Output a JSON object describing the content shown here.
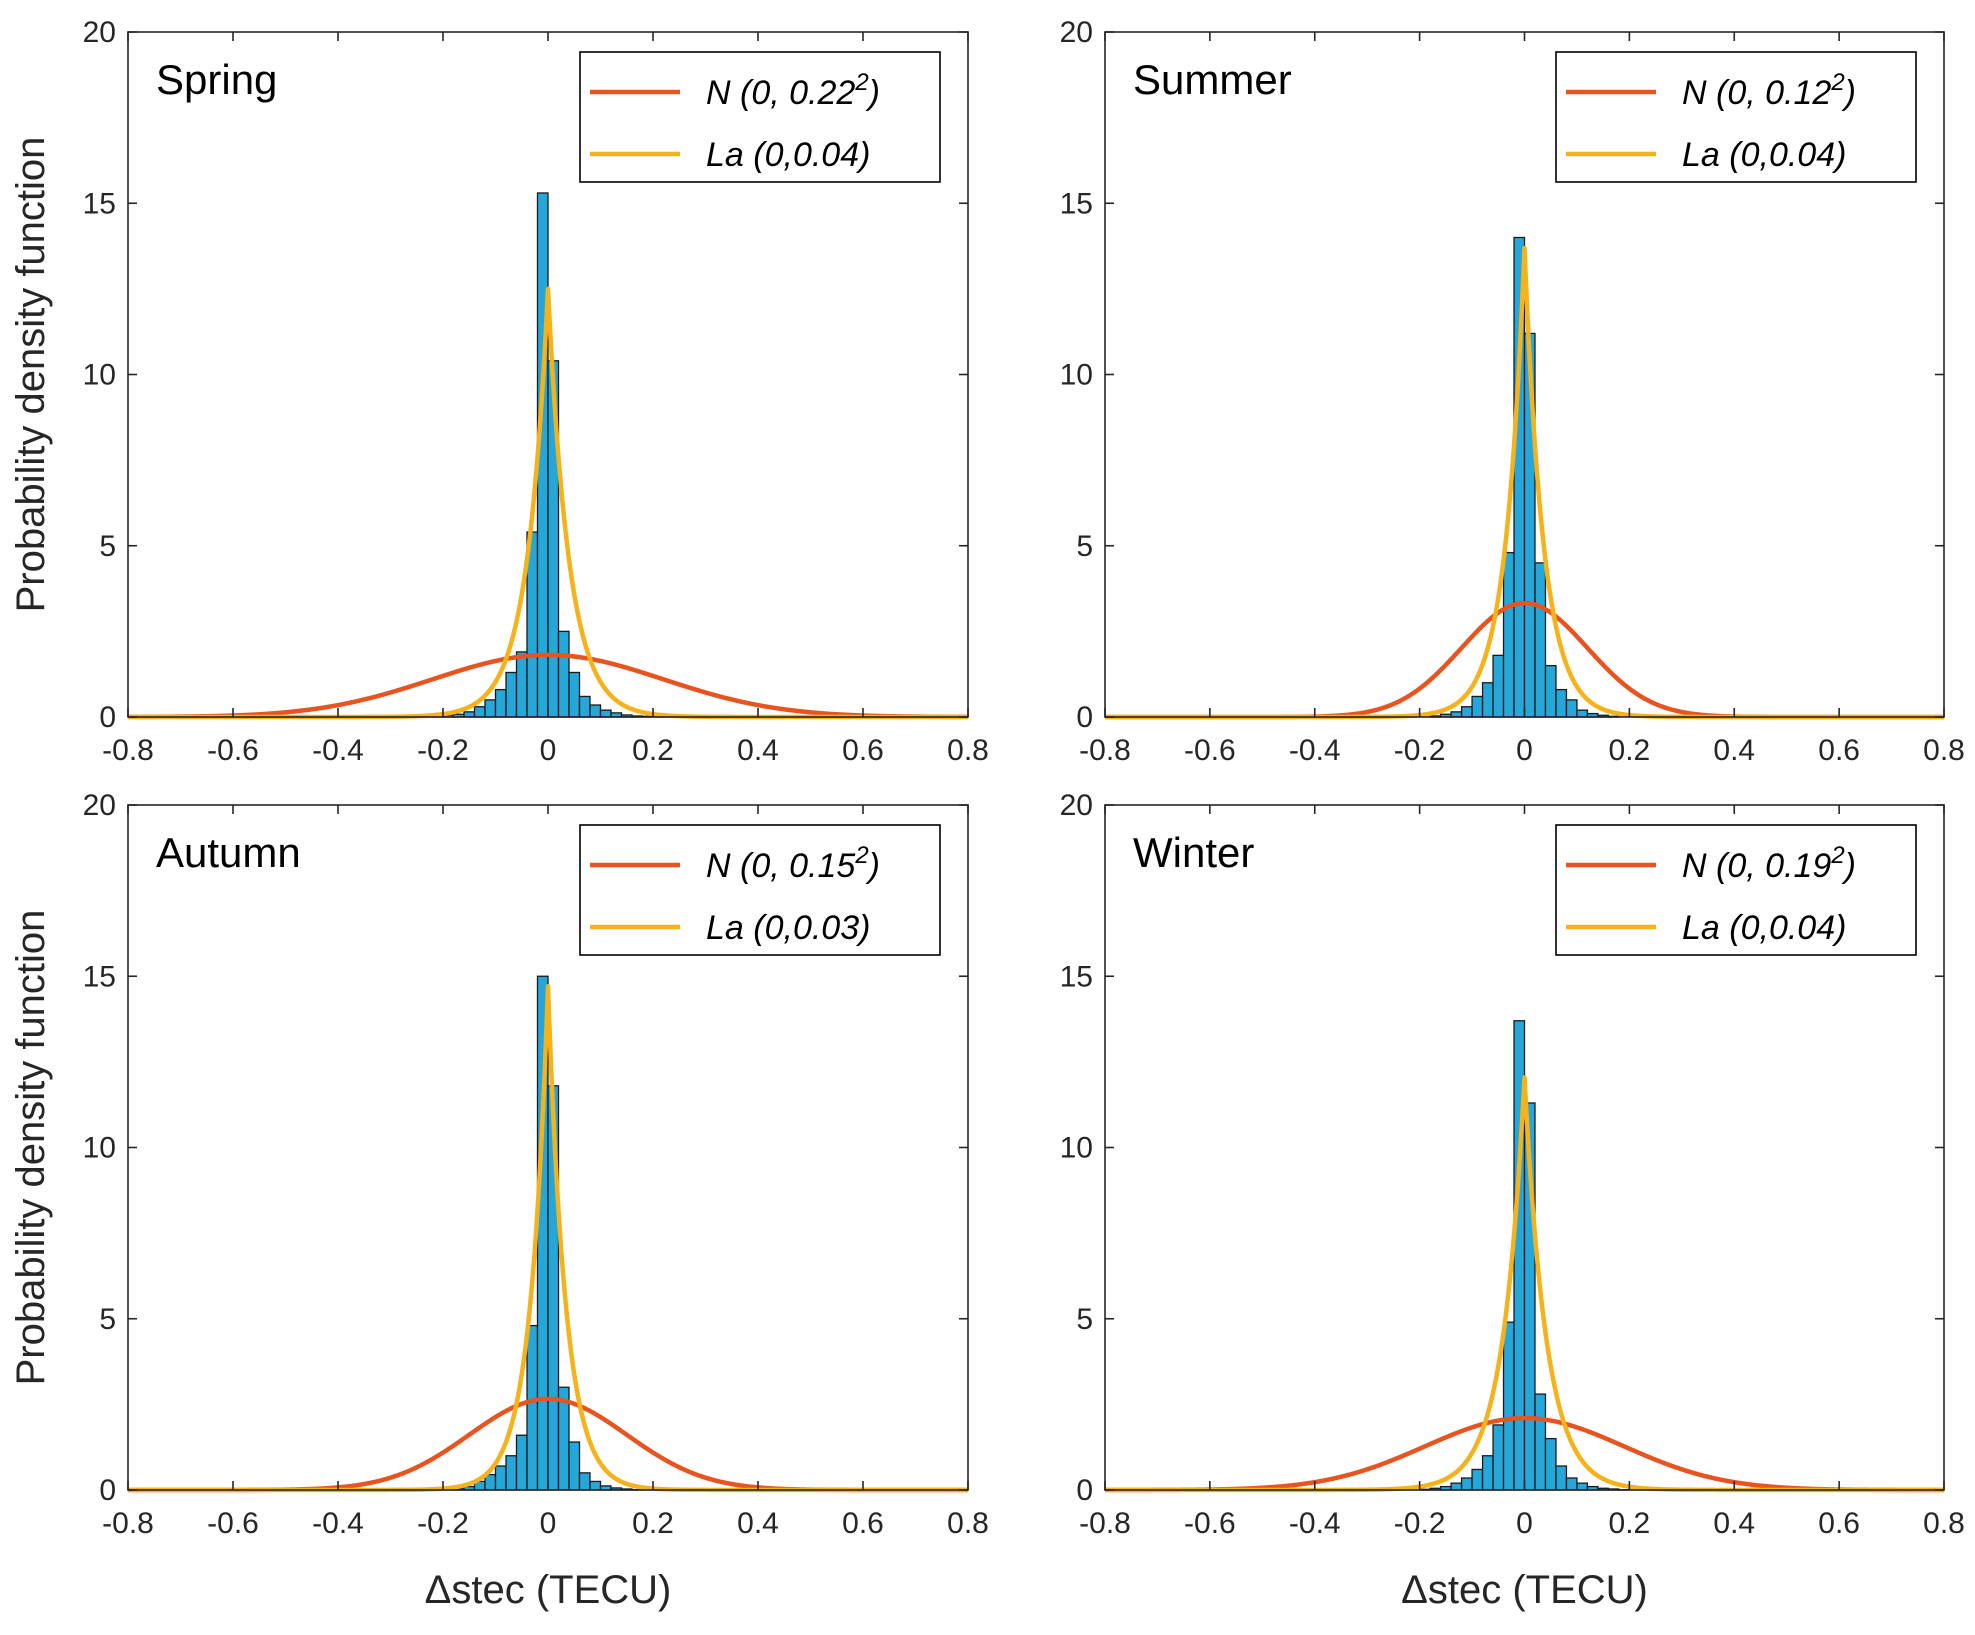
{
  "chart_data": [
    {
      "type": "histogram",
      "title": "Spring",
      "xlabel": "Δstec (TECU)",
      "ylabel": "Probability density function",
      "xlim": [
        -0.8,
        0.8
      ],
      "ylim": [
        0,
        20
      ],
      "xticks": [
        "-0.8",
        "-0.6",
        "-0.4",
        "-0.2",
        "0",
        "0.2",
        "0.4",
        "0.6",
        "0.8"
      ],
      "yticks": [
        "0",
        "5",
        "10",
        "15",
        "20"
      ],
      "bin_width": 0.02,
      "bins_center": [
        -0.21,
        -0.19,
        -0.17,
        -0.15,
        -0.13,
        -0.11,
        -0.09,
        -0.07,
        -0.05,
        -0.03,
        -0.01,
        0.01,
        0.03,
        0.05,
        0.07,
        0.09,
        0.11,
        0.13,
        0.15,
        0.17,
        0.19,
        0.21
      ],
      "bins_value": [
        0.03,
        0.05,
        0.08,
        0.15,
        0.3,
        0.5,
        0.8,
        1.3,
        1.9,
        5.4,
        15.3,
        10.4,
        2.5,
        1.3,
        0.6,
        0.35,
        0.2,
        0.12,
        0.06,
        0.03,
        0.02,
        0.01
      ],
      "series": [
        {
          "name": "normal",
          "label_main": "N (0, 0.22",
          "label_sup": "2",
          "label_tail": ")",
          "mu": 0,
          "sigma": 0.22,
          "color": "#E8541F"
        },
        {
          "name": "laplace",
          "label_main": "La (0,0.04)",
          "label_sup": "",
          "label_tail": "",
          "mu": 0,
          "b": 0.04,
          "color": "#F5B21A"
        }
      ]
    },
    {
      "type": "histogram",
      "title": "Summer",
      "xlabel": "Δstec (TECU)",
      "ylabel": "",
      "xlim": [
        -0.8,
        0.8
      ],
      "ylim": [
        0,
        20
      ],
      "xticks": [
        "-0.8",
        "-0.6",
        "-0.4",
        "-0.2",
        "0",
        "0.2",
        "0.4",
        "0.6",
        "0.8"
      ],
      "yticks": [
        "0",
        "5",
        "10",
        "15",
        "20"
      ],
      "bin_width": 0.02,
      "bins_center": [
        -0.17,
        -0.15,
        -0.13,
        -0.11,
        -0.09,
        -0.07,
        -0.05,
        -0.03,
        -0.01,
        0.01,
        0.03,
        0.05,
        0.07,
        0.09,
        0.11,
        0.13,
        0.15,
        0.17
      ],
      "bins_value": [
        0.03,
        0.08,
        0.15,
        0.3,
        0.6,
        1.0,
        1.8,
        4.8,
        14.0,
        11.2,
        4.5,
        1.5,
        0.8,
        0.5,
        0.2,
        0.1,
        0.05,
        0.02
      ],
      "series": [
        {
          "name": "normal",
          "label_main": "N (0, 0.12",
          "label_sup": "2",
          "label_tail": ")",
          "mu": 0,
          "sigma": 0.12,
          "color": "#E8541F"
        },
        {
          "name": "laplace",
          "label_main": "La (0,0.04)",
          "label_sup": "",
          "label_tail": "",
          "mu": 0,
          "b": 0.0365,
          "color": "#F5B21A"
        }
      ]
    },
    {
      "type": "histogram",
      "title": "Autumn",
      "xlabel": "Δstec (TECU)",
      "ylabel": "Probability density function",
      "xlim": [
        -0.8,
        0.8
      ],
      "ylim": [
        0,
        20
      ],
      "xticks": [
        "-0.8",
        "-0.6",
        "-0.4",
        "-0.2",
        "0",
        "0.2",
        "0.4",
        "0.6",
        "0.8"
      ],
      "yticks": [
        "0",
        "5",
        "10",
        "15",
        "20"
      ],
      "bin_width": 0.02,
      "bins_center": [
        -0.17,
        -0.15,
        -0.13,
        -0.11,
        -0.09,
        -0.07,
        -0.05,
        -0.03,
        -0.01,
        0.01,
        0.03,
        0.05,
        0.07,
        0.09,
        0.11,
        0.13,
        0.15,
        0.17
      ],
      "bins_value": [
        0.04,
        0.1,
        0.25,
        0.45,
        0.7,
        1.0,
        1.6,
        4.8,
        15.0,
        11.8,
        3.0,
        1.4,
        0.5,
        0.25,
        0.12,
        0.06,
        0.03,
        0.01
      ],
      "series": [
        {
          "name": "normal",
          "label_main": "N (0, 0.15",
          "label_sup": "2",
          "label_tail": ")",
          "mu": 0,
          "sigma": 0.15,
          "color": "#E8541F"
        },
        {
          "name": "laplace",
          "label_main": "La (0,0.03)",
          "label_sup": "",
          "label_tail": "",
          "mu": 0,
          "b": 0.034,
          "color": "#F5B21A"
        }
      ]
    },
    {
      "type": "histogram",
      "title": "Winter",
      "xlabel": "Δstec (TECU)",
      "ylabel": "",
      "xlim": [
        -0.8,
        0.8
      ],
      "ylim": [
        0,
        20
      ],
      "xticks": [
        "-0.8",
        "-0.6",
        "-0.4",
        "-0.2",
        "0",
        "0.2",
        "0.4",
        "0.6",
        "0.8"
      ],
      "yticks": [
        "0",
        "5",
        "10",
        "15",
        "20"
      ],
      "bin_width": 0.02,
      "bins_center": [
        -0.19,
        -0.17,
        -0.15,
        -0.13,
        -0.11,
        -0.09,
        -0.07,
        -0.05,
        -0.03,
        -0.01,
        0.01,
        0.03,
        0.05,
        0.07,
        0.09,
        0.11,
        0.13,
        0.15,
        0.17,
        0.19
      ],
      "bins_value": [
        0.02,
        0.05,
        0.1,
        0.2,
        0.35,
        0.6,
        1.0,
        1.9,
        4.9,
        13.7,
        11.3,
        2.8,
        1.5,
        0.7,
        0.35,
        0.2,
        0.1,
        0.05,
        0.03,
        0.01
      ],
      "series": [
        {
          "name": "normal",
          "label_main": "N (0, 0.19",
          "label_sup": "2",
          "label_tail": ")",
          "mu": 0,
          "sigma": 0.19,
          "color": "#E8541F"
        },
        {
          "name": "laplace",
          "label_main": "La (0,0.04)",
          "label_sup": "",
          "label_tail": "",
          "mu": 0,
          "b": 0.0415,
          "color": "#F5B21A"
        }
      ]
    }
  ],
  "colors": {
    "bar_fill": "#25A7D9",
    "bar_edge": "#1a1a1a",
    "axis": "#262626"
  }
}
